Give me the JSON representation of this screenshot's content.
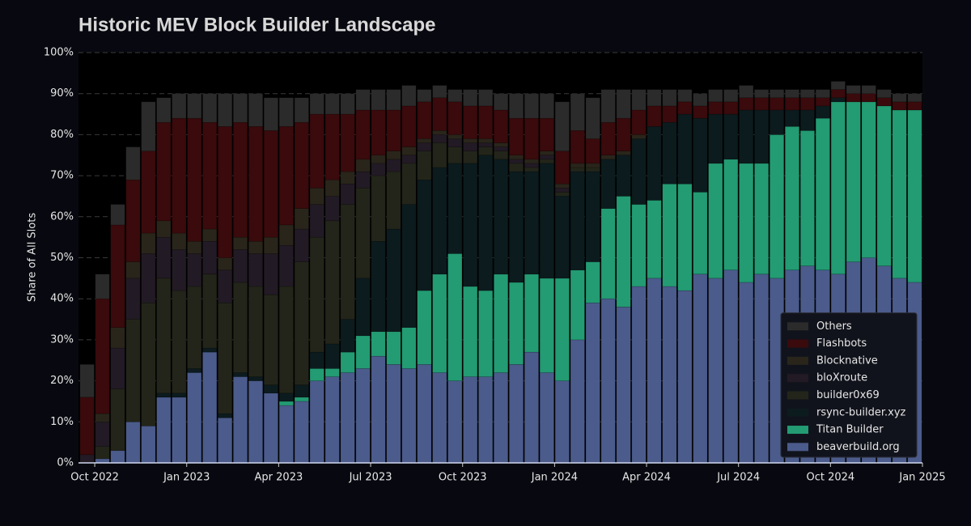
{
  "chart_data": {
    "type": "stacked_bar",
    "title": "Historic MEV Block Builder Landscape",
    "y_label": "Share of All Slots",
    "x": [
      -0.25,
      0.25,
      0.75,
      1.25,
      1.75,
      2.25,
      2.75,
      3.25,
      3.75,
      4.25,
      4.75,
      5.25,
      5.75,
      6.25,
      6.75,
      7.25,
      7.75,
      8.25,
      8.75,
      9.25,
      9.75,
      10.25,
      10.75,
      11.25,
      11.75,
      12.25,
      12.75,
      13.25,
      13.75,
      14.25,
      14.75,
      15.25,
      15.75,
      16.25,
      16.75,
      17.25,
      17.75,
      18.25,
      18.75,
      19.25,
      19.75,
      20.25,
      20.75,
      21.25,
      21.75,
      22.25,
      22.75,
      23.25,
      23.75,
      24.25,
      24.75,
      25.25,
      25.75,
      26.25,
      26.75
    ],
    "xlim": [
      -0.53,
      27
    ],
    "xticks": [
      {
        "value": 0,
        "label": "Oct 2022"
      },
      {
        "value": 3,
        "label": "Jan 2023"
      },
      {
        "value": 6,
        "label": "Apr 2023"
      },
      {
        "value": 9,
        "label": "Jul 2023"
      },
      {
        "value": 12,
        "label": "Oct 2023"
      },
      {
        "value": 15,
        "label": "Jan 2024"
      },
      {
        "value": 18,
        "label": "Apr 2024"
      },
      {
        "value": 21,
        "label": "Jul 2024"
      },
      {
        "value": 24,
        "label": "Oct 2024"
      },
      {
        "value": 27,
        "label": "Jan 2025"
      }
    ],
    "ylim": [
      0,
      100
    ],
    "yticks": [
      {
        "value": 0,
        "label": "0%"
      },
      {
        "value": 10,
        "label": "10%"
      },
      {
        "value": 20,
        "label": "20%"
      },
      {
        "value": 30,
        "label": "30%"
      },
      {
        "value": 40,
        "label": "40%"
      },
      {
        "value": 50,
        "label": "50%"
      },
      {
        "value": 60,
        "label": "60%"
      },
      {
        "value": 70,
        "label": "70%"
      },
      {
        "value": 80,
        "label": "80%"
      },
      {
        "value": 90,
        "label": "90%"
      },
      {
        "value": 100,
        "label": "100%"
      }
    ],
    "grid": true,
    "legend": "lower right",
    "series": [
      {
        "name": "beaverbuild.org",
        "color": "#4b5b8b",
        "values": [
          0,
          1,
          3,
          10,
          9,
          16,
          16,
          22,
          27,
          11,
          21,
          20,
          17,
          14,
          15,
          20,
          21,
          22,
          23,
          26,
          24,
          23,
          24,
          22,
          20,
          21,
          21,
          22,
          24,
          27,
          22,
          20,
          30,
          39,
          40,
          38,
          43,
          45,
          43,
          42,
          46,
          45,
          47,
          44,
          46,
          45,
          47,
          48,
          47,
          46,
          49,
          50,
          48,
          45,
          44
        ]
      },
      {
        "name": "Titan Builder",
        "color": "#239b73",
        "values": [
          0,
          0,
          0,
          0,
          0,
          0,
          0,
          0,
          0,
          0,
          0,
          0,
          0,
          1,
          1,
          3,
          2,
          5,
          8,
          6,
          8,
          10,
          18,
          24,
          31,
          22,
          21,
          24,
          20,
          19,
          23,
          25,
          17,
          10,
          22,
          27,
          20,
          19,
          25,
          26,
          20,
          28,
          27,
          29,
          27,
          35,
          35,
          33,
          37,
          42,
          39,
          38,
          39,
          41,
          42
        ]
      },
      {
        "name": "rsync-builder.xyz",
        "color": "#0c1b1e",
        "values": [
          0,
          0,
          0,
          0,
          0,
          1,
          1,
          1,
          1,
          1,
          1,
          1,
          2,
          2,
          3,
          4,
          6,
          8,
          14,
          22,
          25,
          30,
          27,
          26,
          22,
          30,
          33,
          28,
          27,
          25,
          28,
          20,
          24,
          22,
          12,
          10,
          16,
          18,
          15,
          17,
          18,
          12,
          11,
          13,
          13,
          6,
          4,
          5,
          3,
          1,
          0,
          0,
          0,
          0,
          0
        ]
      },
      {
        "name": "builder0x69",
        "color": "#23251a",
        "values": [
          0,
          3,
          15,
          25,
          30,
          28,
          25,
          20,
          18,
          27,
          22,
          22,
          22,
          26,
          30,
          28,
          30,
          28,
          22,
          16,
          14,
          10,
          7,
          6,
          4,
          3,
          2,
          2,
          2,
          1,
          1,
          1,
          1,
          1,
          0,
          0,
          0,
          0,
          0,
          0,
          0,
          0,
          0,
          0,
          0,
          0,
          0,
          0,
          0,
          0,
          0,
          0,
          0,
          0,
          0
        ]
      },
      {
        "name": "bloXroute",
        "color": "#221a24",
        "values": [
          2,
          6,
          10,
          10,
          12,
          10,
          10,
          8,
          8,
          8,
          8,
          8,
          10,
          10,
          8,
          8,
          6,
          5,
          4,
          3,
          3,
          2,
          2,
          2,
          2,
          2,
          1,
          1,
          1,
          1,
          1,
          1,
          0,
          0,
          0,
          0,
          0,
          0,
          0,
          0,
          0,
          0,
          0,
          0,
          0,
          0,
          0,
          0,
          0,
          0,
          0,
          0,
          0,
          0,
          0
        ]
      },
      {
        "name": "Blocknative",
        "color": "#29251b",
        "values": [
          0,
          2,
          5,
          4,
          5,
          4,
          4,
          3,
          3,
          3,
          3,
          3,
          4,
          5,
          5,
          4,
          4,
          3,
          3,
          2,
          2,
          2,
          1,
          1,
          1,
          1,
          1,
          1,
          1,
          1,
          1,
          1,
          1,
          1,
          1,
          1,
          1,
          0,
          0,
          0,
          0,
          0,
          0,
          0,
          0,
          0,
          0,
          0,
          0,
          0,
          0,
          0,
          0,
          0,
          0
        ]
      },
      {
        "name": "Flashbots",
        "color": "#3a0a0c",
        "values": [
          14,
          28,
          25,
          20,
          20,
          24,
          28,
          30,
          26,
          32,
          28,
          28,
          26,
          24,
          21,
          18,
          16,
          14,
          12,
          11,
          10,
          10,
          9,
          8,
          8,
          8,
          8,
          8,
          9,
          10,
          8,
          8,
          8,
          6,
          8,
          8,
          6,
          5,
          4,
          3,
          3,
          3,
          3,
          3,
          3,
          3,
          3,
          3,
          2,
          2,
          2,
          2,
          2,
          2,
          2
        ]
      },
      {
        "name": "Others",
        "color": "#2b2b2b",
        "values": [
          8,
          6,
          5,
          8,
          12,
          6,
          6,
          6,
          7,
          8,
          7,
          8,
          8,
          7,
          6,
          5,
          5,
          5,
          5,
          5,
          5,
          5,
          3,
          3,
          3,
          4,
          4,
          4,
          6,
          6,
          6,
          12,
          9,
          10,
          8,
          7,
          5,
          4,
          4,
          3,
          3,
          3,
          3,
          3,
          2,
          2,
          2,
          2,
          2,
          2,
          2,
          2,
          2,
          2,
          2
        ]
      }
    ]
  }
}
